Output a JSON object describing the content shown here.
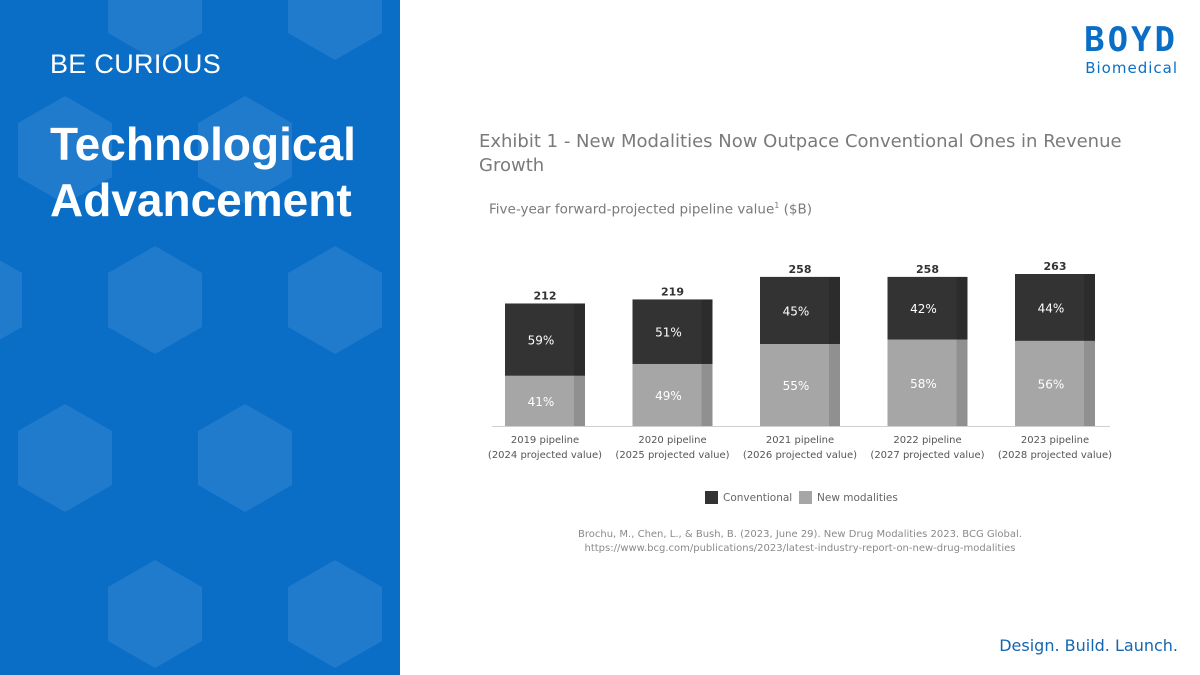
{
  "slide": {
    "eyebrow": "BE CURIOUS",
    "headline_line1": "Technological",
    "headline_line2": "Advancement",
    "panel_color": "#0a6ec7"
  },
  "logo": {
    "word": "BOYD",
    "sub": "Biomedical"
  },
  "exhibit": {
    "title": "Exhibit 1 - New Modalities Now Outpace Conventional Ones in Revenue Growth",
    "subtitle_main": "Five-year forward-projected pipeline value",
    "subtitle_sup": "1",
    "subtitle_unit": " ($B)"
  },
  "chart_data": {
    "type": "bar",
    "stacked": true,
    "categories": [
      [
        "2019 pipeline",
        "(2024 projected value)"
      ],
      [
        "2020 pipeline",
        "(2025 projected value)"
      ],
      [
        "2021 pipeline",
        "(2026 projected value)"
      ],
      [
        "2022 pipeline",
        "(2027 projected value)"
      ],
      [
        "2023 pipeline",
        "(2028 projected value)"
      ]
    ],
    "totals": [
      212,
      219,
      258,
      258,
      263
    ],
    "series": [
      {
        "name": "New modalities",
        "percent": [
          41,
          49,
          55,
          58,
          56
        ],
        "color": "#a6a6a6"
      },
      {
        "name": "Conventional",
        "percent": [
          59,
          51,
          45,
          42,
          44
        ],
        "color": "#333333"
      }
    ],
    "ylim": [
      0,
      263
    ],
    "grid": false,
    "legend_position": "bottom"
  },
  "citation": {
    "line1": "Brochu, M., Chen, L., & Bush, B. (2023, June 29). New Drug Modalities 2023. BCG Global.",
    "line2": "https://www.bcg.com/publications/2023/latest-industry-report-on-new-drug-modalities"
  },
  "tagline": "Design. Build. Launch."
}
